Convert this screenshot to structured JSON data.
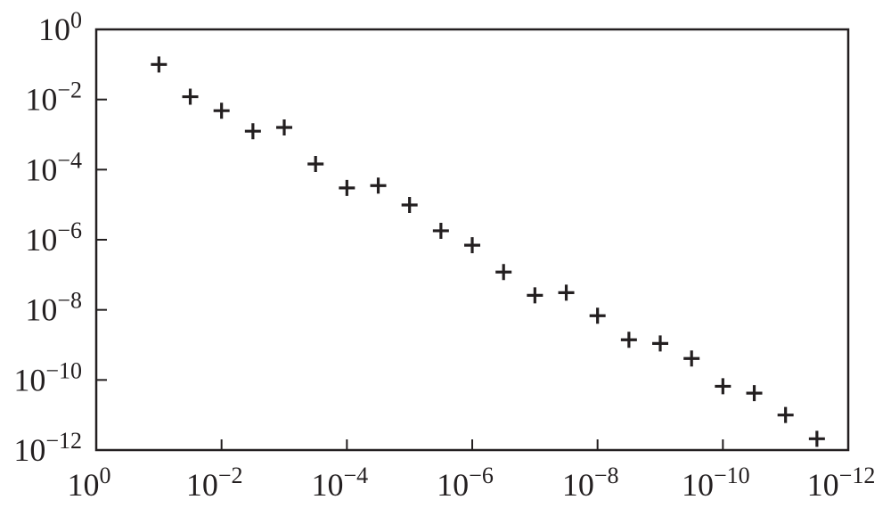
{
  "chart_data": {
    "type": "scatter",
    "title": "",
    "xlabel": "",
    "ylabel": "",
    "x_scale": "log",
    "y_scale": "log",
    "x_reversed": true,
    "xlim": [
      1,
      1e-12
    ],
    "ylim": [
      1e-12,
      1
    ],
    "grid": false,
    "marker": "plus",
    "colors": {
      "ink": "#231f20",
      "background": "#ffffff"
    },
    "x_ticks": [
      {
        "base": "10",
        "exp": "0",
        "value": 1
      },
      {
        "base": "10",
        "exp": "−2",
        "value": 0.01
      },
      {
        "base": "10",
        "exp": "−4",
        "value": 0.0001
      },
      {
        "base": "10",
        "exp": "−6",
        "value": 1e-06
      },
      {
        "base": "10",
        "exp": "−8",
        "value": 1e-08
      },
      {
        "base": "10",
        "exp": "−10",
        "value": 1e-10
      },
      {
        "base": "10",
        "exp": "−12",
        "value": 1e-12
      }
    ],
    "y_ticks": [
      {
        "base": "10",
        "exp": "0",
        "value": 1
      },
      {
        "base": "10",
        "exp": "−2",
        "value": 0.01
      },
      {
        "base": "10",
        "exp": "−4",
        "value": 0.0001
      },
      {
        "base": "10",
        "exp": "−6",
        "value": 1e-06
      },
      {
        "base": "10",
        "exp": "−8",
        "value": 1e-08
      },
      {
        "base": "10",
        "exp": "−10",
        "value": 1e-10
      },
      {
        "base": "10",
        "exp": "−12",
        "value": 1e-12
      }
    ],
    "points": [
      {
        "x": 0.1,
        "y": 0.1
      },
      {
        "x": 0.0316,
        "y": 0.012
      },
      {
        "x": 0.01,
        "y": 0.0048
      },
      {
        "x": 0.00316,
        "y": 0.00125
      },
      {
        "x": 0.001,
        "y": 0.0016
      },
      {
        "x": 0.000316,
        "y": 0.000145
      },
      {
        "x": 0.0001,
        "y": 3e-05
      },
      {
        "x": 3.16e-05,
        "y": 3.5e-05
      },
      {
        "x": 1e-05,
        "y": 9.8e-06
      },
      {
        "x": 3.16e-06,
        "y": 1.8e-06
      },
      {
        "x": 1e-06,
        "y": 7e-07
      },
      {
        "x": 3.16e-07,
        "y": 1.2e-07
      },
      {
        "x": 1e-07,
        "y": 2.6e-08
      },
      {
        "x": 3.16e-08,
        "y": 3.1e-08
      },
      {
        "x": 1e-08,
        "y": 6.8e-09
      },
      {
        "x": 3.16e-09,
        "y": 1.4e-09
      },
      {
        "x": 1e-09,
        "y": 1.1e-09
      },
      {
        "x": 3.16e-10,
        "y": 4.1e-10
      },
      {
        "x": 1e-10,
        "y": 6.6e-11
      },
      {
        "x": 3.16e-11,
        "y": 4.2e-11
      },
      {
        "x": 1e-11,
        "y": 1e-11
      },
      {
        "x": 3.16e-12,
        "y": 2.1e-12
      }
    ]
  }
}
